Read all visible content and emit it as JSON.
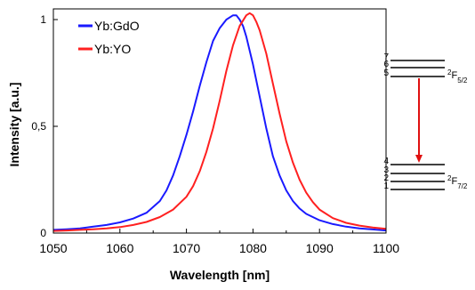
{
  "chart_data": {
    "type": "line",
    "title": "",
    "xlabel": "Wavelength [nm]",
    "ylabel": "Intensity [a.u.]",
    "xlim": [
      1050,
      1100
    ],
    "ylim": [
      0,
      1.05
    ],
    "xticks": [
      1050,
      1060,
      1070,
      1080,
      1090,
      1100
    ],
    "yticks": [
      {
        "value": 0,
        "label": "0"
      },
      {
        "value": 0.5,
        "label": "0,5"
      },
      {
        "value": 1,
        "label": "1"
      }
    ],
    "grid": false,
    "legend": "top-left",
    "series": [
      {
        "name": "Yb:GdO",
        "color": "#1a1aff",
        "x": [
          1050,
          1052,
          1054,
          1056,
          1058,
          1060,
          1062,
          1064,
          1066,
          1067,
          1068,
          1069,
          1070,
          1071,
          1072,
          1073,
          1074,
          1075,
          1076,
          1077,
          1077.5,
          1078,
          1078.5,
          1079,
          1080,
          1081,
          1082,
          1083,
          1084,
          1085,
          1086,
          1087,
          1088,
          1090,
          1092,
          1094,
          1096,
          1098,
          1100
        ],
        "y": [
          0.015,
          0.018,
          0.022,
          0.03,
          0.038,
          0.05,
          0.068,
          0.095,
          0.15,
          0.2,
          0.27,
          0.36,
          0.46,
          0.57,
          0.69,
          0.8,
          0.9,
          0.96,
          1.0,
          1.02,
          1.02,
          1.0,
          0.97,
          0.92,
          0.79,
          0.64,
          0.49,
          0.36,
          0.27,
          0.2,
          0.15,
          0.115,
          0.09,
          0.06,
          0.042,
          0.03,
          0.022,
          0.017,
          0.012
        ]
      },
      {
        "name": "Yb:YO",
        "color": "#ff2020",
        "x": [
          1050,
          1052,
          1054,
          1056,
          1058,
          1060,
          1062,
          1064,
          1066,
          1068,
          1070,
          1071,
          1072,
          1073,
          1074,
          1075,
          1076,
          1077,
          1078,
          1079,
          1079.5,
          1080,
          1080.5,
          1081,
          1082,
          1083,
          1084,
          1085,
          1086,
          1087,
          1088,
          1089,
          1090,
          1092,
          1094,
          1096,
          1098,
          1100
        ],
        "y": [
          0.01,
          0.012,
          0.015,
          0.018,
          0.022,
          0.028,
          0.038,
          0.052,
          0.075,
          0.11,
          0.17,
          0.22,
          0.29,
          0.38,
          0.49,
          0.62,
          0.76,
          0.88,
          0.97,
          1.02,
          1.03,
          1.02,
          0.99,
          0.95,
          0.84,
          0.7,
          0.56,
          0.43,
          0.33,
          0.25,
          0.19,
          0.145,
          0.11,
          0.07,
          0.048,
          0.035,
          0.026,
          0.02
        ]
      }
    ]
  },
  "energy_diagram": {
    "upper_levels": [
      "7",
      "6",
      "5"
    ],
    "upper_term": {
      "base": "2",
      "letter": "F",
      "sub": "5/2"
    },
    "lower_levels": [
      "4",
      "3",
      "2",
      "1"
    ],
    "lower_term": {
      "base": "2",
      "letter": "F",
      "sub": "7/2"
    },
    "arrow_color": "#e01010"
  }
}
